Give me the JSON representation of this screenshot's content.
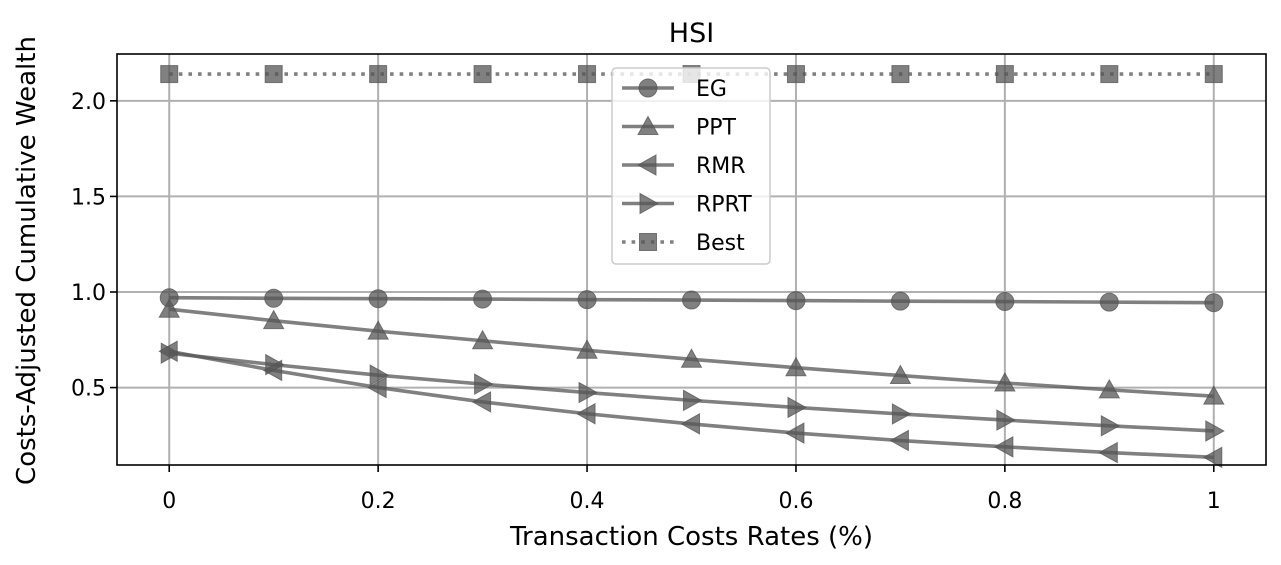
{
  "chart_data": {
    "type": "line",
    "title": "HSI",
    "xlabel": "Transaction Costs Rates (%)",
    "ylabel": "Costs-Adjusted Cumulative Wealth",
    "x": [
      0,
      0.1,
      0.2,
      0.3,
      0.4,
      0.5,
      0.6,
      0.7,
      0.8,
      0.9,
      1.0
    ],
    "xticks": [
      0,
      0.2,
      0.4,
      0.6,
      0.8,
      1.0
    ],
    "xtick_labels": [
      "0",
      "0.2",
      "0.4",
      "0.6",
      "0.8",
      "1"
    ],
    "yticks": [
      0.5,
      1.0,
      1.5,
      2.0
    ],
    "ytick_labels": [
      "0.5",
      "1.0",
      "1.5",
      "2.0"
    ],
    "xlim": [
      -0.05,
      1.05
    ],
    "ylim": [
      0.095,
      2.245
    ],
    "grid": true,
    "legend_position": "top-center",
    "series": [
      {
        "name": "EG",
        "marker": "circle",
        "linestyle": "solid",
        "color": "#555555",
        "values": [
          0.97,
          0.967,
          0.965,
          0.963,
          0.96,
          0.958,
          0.955,
          0.952,
          0.95,
          0.947,
          0.944
        ]
      },
      {
        "name": "PPT",
        "marker": "triangle-up",
        "linestyle": "solid",
        "color": "#555555",
        "values": [
          0.91,
          0.85,
          0.795,
          0.745,
          0.695,
          0.648,
          0.604,
          0.563,
          0.524,
          0.488,
          0.455
        ]
      },
      {
        "name": "RMR",
        "marker": "triangle-left",
        "linestyle": "solid",
        "color": "#555555",
        "values": [
          0.69,
          0.59,
          0.5,
          0.425,
          0.363,
          0.31,
          0.262,
          0.223,
          0.19,
          0.16,
          0.135
        ]
      },
      {
        "name": "RPRT",
        "marker": "triangle-right",
        "linestyle": "solid",
        "color": "#555555",
        "values": [
          0.68,
          0.62,
          0.565,
          0.518,
          0.474,
          0.433,
          0.396,
          0.362,
          0.33,
          0.3,
          0.273
        ]
      },
      {
        "name": "Best",
        "marker": "square",
        "linestyle": "dotted",
        "color": "#555555",
        "values": [
          2.14,
          2.14,
          2.14,
          2.14,
          2.14,
          2.14,
          2.14,
          2.14,
          2.14,
          2.14,
          2.14
        ]
      }
    ]
  }
}
